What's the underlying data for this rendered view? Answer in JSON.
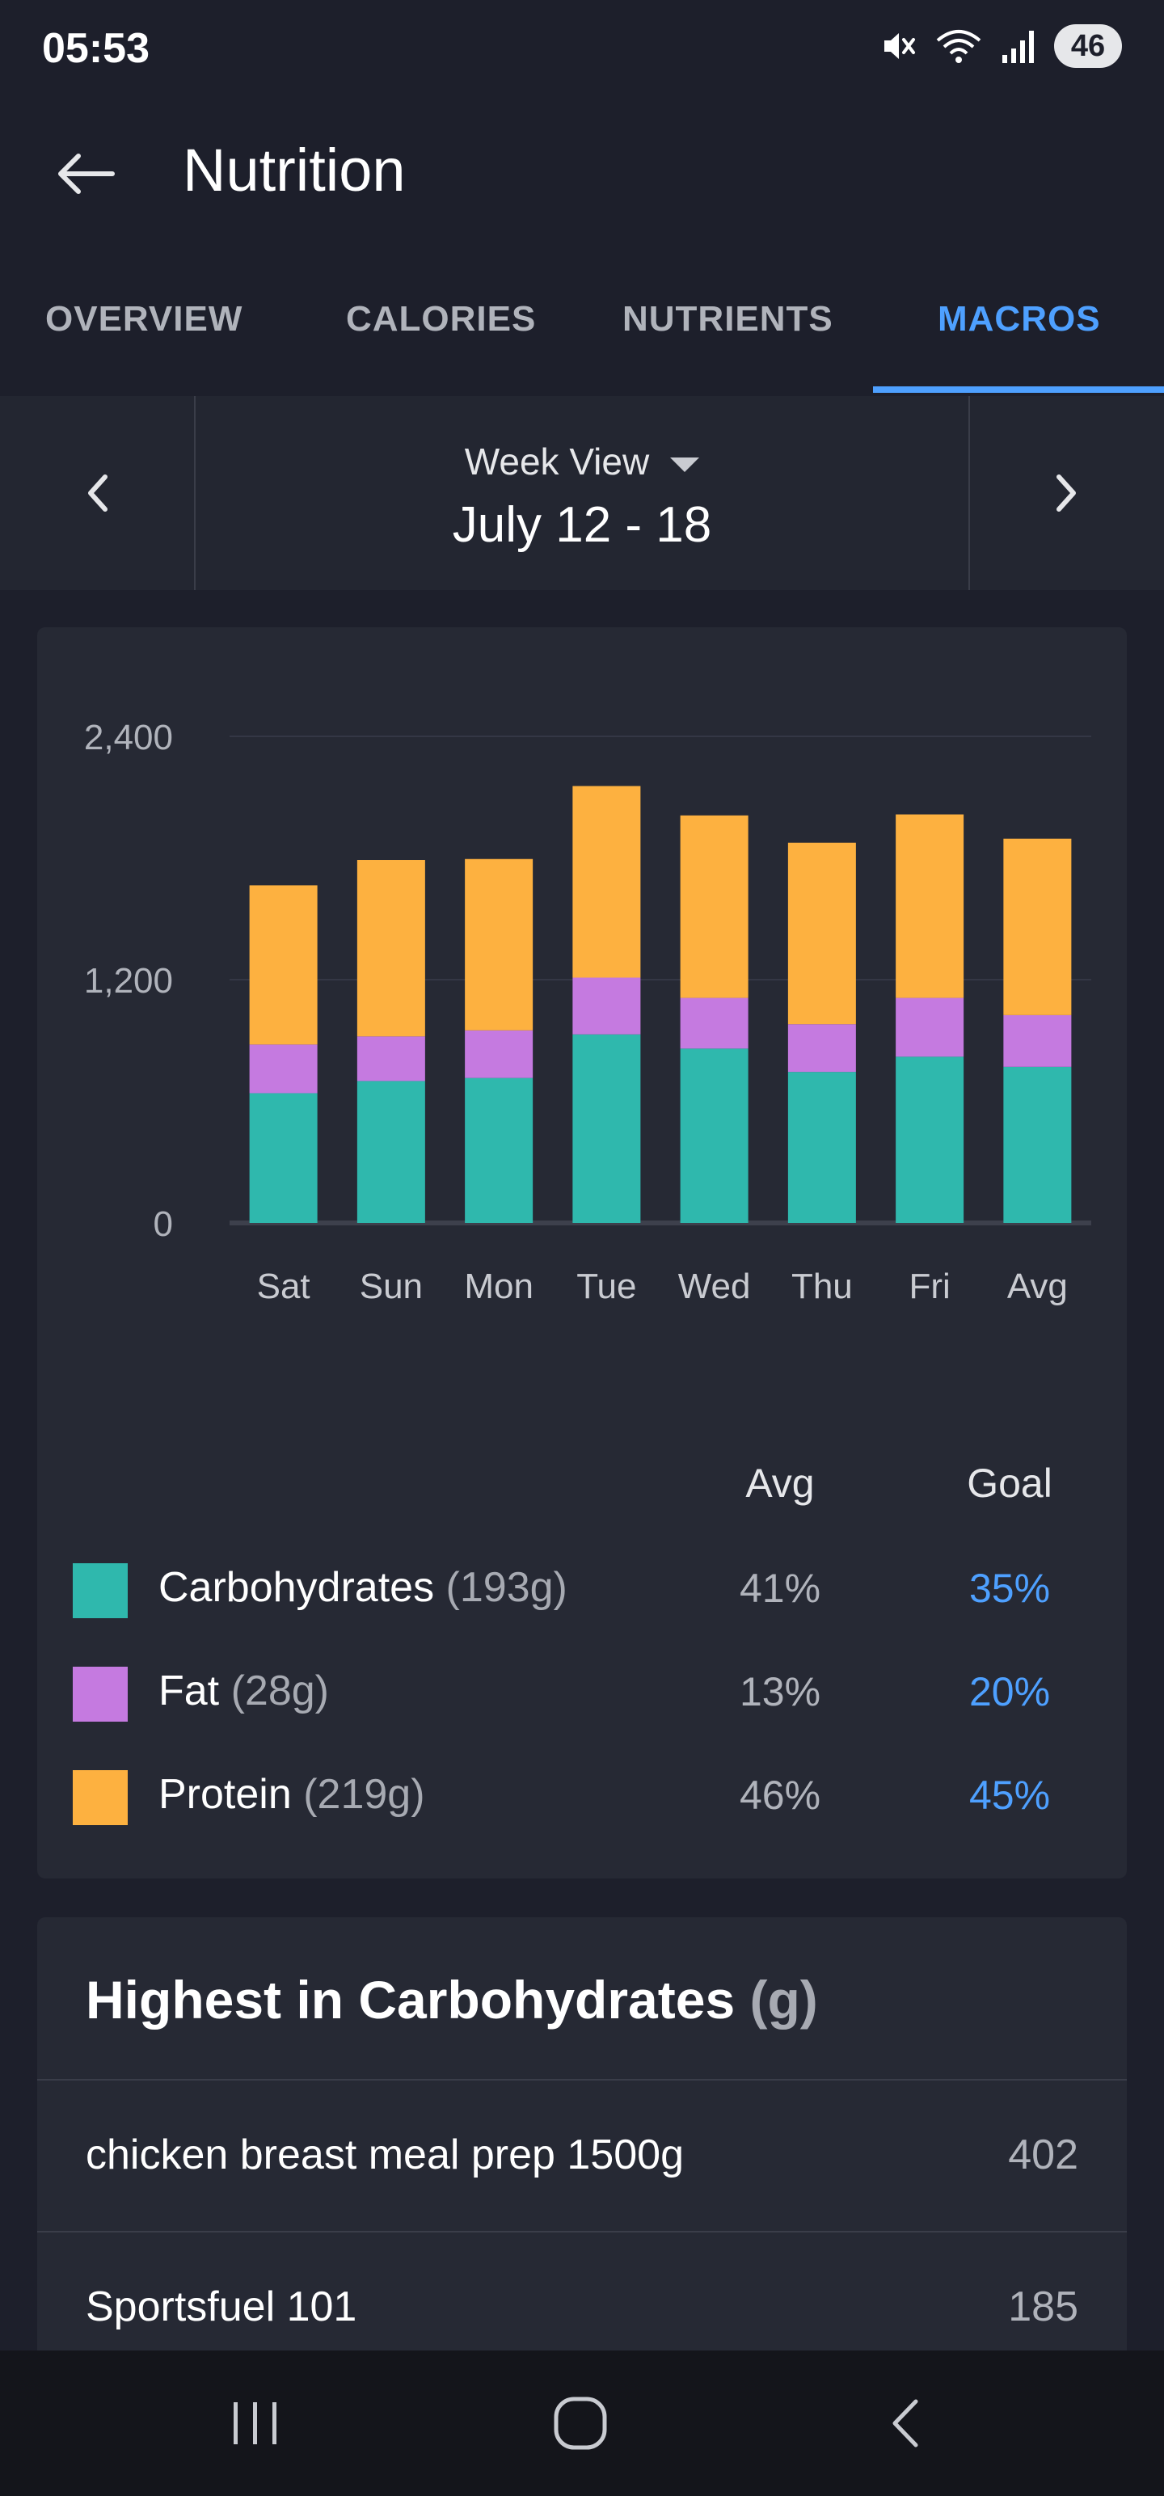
{
  "status_bar": {
    "time": "05:53",
    "battery": "46",
    "icons": [
      "mute-icon",
      "wifi-icon",
      "signal-icon",
      "battery-icon"
    ]
  },
  "app_bar": {
    "title": "Nutrition",
    "back_icon": "back-arrow-icon"
  },
  "tabs": [
    {
      "label": "OVERVIEW",
      "active": false
    },
    {
      "label": "CALORIES",
      "active": false
    },
    {
      "label": "NUTRIENTS",
      "active": false
    },
    {
      "label": "MACROS",
      "active": true
    }
  ],
  "week_nav": {
    "view_label": "Week View",
    "range": "July 12 - 18"
  },
  "colors": {
    "carbohydrates": "#2fb8ad",
    "fat": "#c57ae0",
    "protein": "#fdb140",
    "accent": "#4ea0ff"
  },
  "chart_data": {
    "type": "bar",
    "stacked": true,
    "categories": [
      "Sat",
      "Sun",
      "Mon",
      "Tue",
      "Wed",
      "Thu",
      "Fri",
      "Avg"
    ],
    "y_ticks": [
      "2,400",
      "1,200",
      "0"
    ],
    "ylim": [
      0,
      2400
    ],
    "grid": true,
    "series": [
      {
        "name": "Carbohydrates",
        "color": "#2fb8ad",
        "values": [
          640,
          700,
          715,
          930,
          860,
          745,
          820,
          770
        ]
      },
      {
        "name": "Fat",
        "color": "#c57ae0",
        "values": [
          240,
          220,
          235,
          280,
          250,
          235,
          290,
          255
        ]
      },
      {
        "name": "Protein",
        "color": "#fdb140",
        "values": [
          785,
          870,
          845,
          945,
          900,
          895,
          905,
          870
        ]
      }
    ]
  },
  "legend": {
    "avg_header": "Avg",
    "goal_header": "Goal",
    "rows": [
      {
        "name": "Carbohydrates",
        "grams": "(193g)",
        "avg": "41%",
        "goal": "35%",
        "color": "#2fb8ad"
      },
      {
        "name": "Fat",
        "grams": "(28g)",
        "avg": "13%",
        "goal": "20%",
        "color": "#c57ae0"
      },
      {
        "name": "Protein",
        "grams": "(219g)",
        "avg": "46%",
        "goal": "45%",
        "color": "#fdb140"
      }
    ]
  },
  "highest_list": {
    "title": "Highest in Carbohydrates",
    "unit": "(g)",
    "items": [
      {
        "name": "chicken breast meal prep 1500g",
        "value": "402"
      },
      {
        "name": "Sportsfuel 101",
        "value": "185"
      }
    ]
  },
  "nav_bar": {
    "icons": [
      "recent-apps-icon",
      "home-icon",
      "back-icon"
    ]
  }
}
